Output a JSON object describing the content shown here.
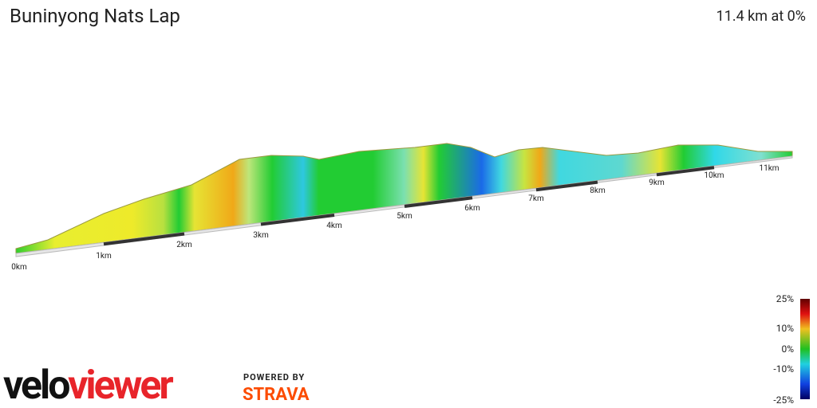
{
  "header": {
    "title": "Buninyong Nats Lap",
    "summary": "11.4 km at 0%"
  },
  "distance_labels": [
    "0km",
    "1km",
    "2km",
    "3km",
    "4km",
    "5km",
    "6km",
    "7km",
    "8km",
    "9km",
    "10km",
    "11km"
  ],
  "legend": {
    "labels": [
      "25%",
      "10%",
      "0%",
      "-10%",
      "-25%"
    ]
  },
  "branding": {
    "logo_part1": "velo",
    "logo_part2": "viewer",
    "powered_by": "POWERED BY",
    "strava": "STRAVA"
  }
}
